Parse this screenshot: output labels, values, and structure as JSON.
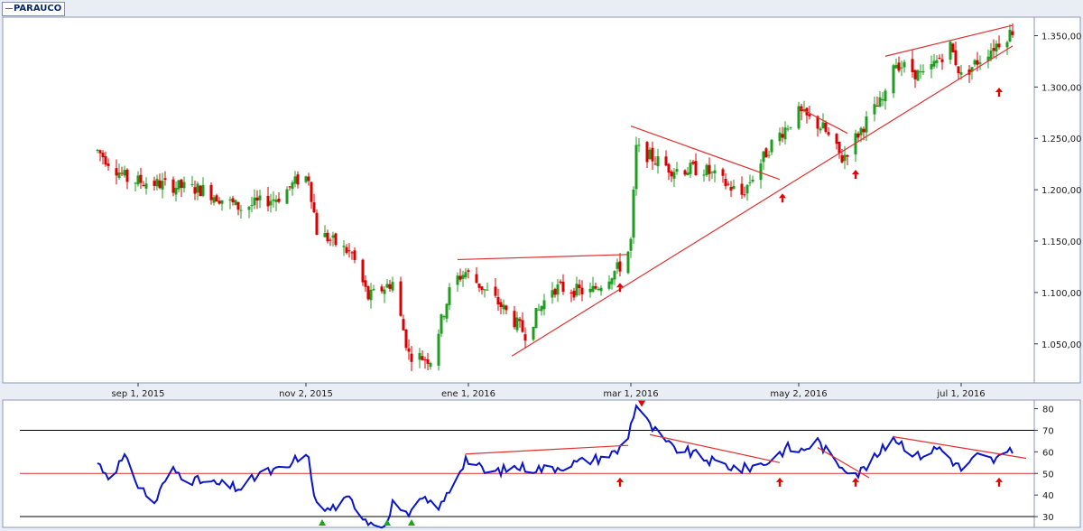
{
  "legend": {
    "label": "PARAUCO"
  },
  "colors": {
    "up": "#1e9e1e",
    "down": "#d80000",
    "trend": "#e03030",
    "indicator": "#0a14c8",
    "reference": "#e03030",
    "level": "#000000",
    "signal_up": "#1ba61b",
    "signal_arrow": "#e80000",
    "background": "#ffffff"
  },
  "chart_data": [
    {
      "type": "candlestick",
      "title": "PARAUCO",
      "x_ticks": [
        "sep 1, 2015",
        "nov 2, 2015",
        "ene 1, 2016",
        "mar 1, 2016",
        "may 2, 2016",
        "jul 1, 2016"
      ],
      "x_tick_dates": [
        "2015-09-01",
        "2015-11-02",
        "2016-01-01",
        "2016-03-01",
        "2016-05-02",
        "2016-07-01"
      ],
      "xlim": [
        "2015-07-13",
        "2016-07-28"
      ],
      "y_ticks": [
        "1.050,00",
        "1.100,00",
        "1.150,00",
        "1.200,00",
        "1.250,00",
        "1.300,00",
        "1.350,00"
      ],
      "y_tick_values": [
        1050,
        1100,
        1150,
        1200,
        1250,
        1300,
        1350
      ],
      "ylim": [
        1012,
        1368
      ],
      "grid": false,
      "legend": "top-left",
      "anchors": [
        [
          "2015-08-17",
          1238
        ],
        [
          "2015-08-28",
          1210
        ],
        [
          "2015-09-10",
          1205
        ],
        [
          "2015-09-25",
          1200
        ],
        [
          "2015-10-09",
          1182
        ],
        [
          "2015-10-23",
          1193
        ],
        [
          "2015-10-31",
          1212
        ],
        [
          "2015-11-03",
          1212
        ],
        [
          "2015-11-06",
          1160
        ],
        [
          "2015-11-19",
          1137
        ],
        [
          "2015-11-25",
          1095
        ],
        [
          "2015-12-04",
          1110
        ],
        [
          "2015-12-10",
          1040
        ],
        [
          "2015-12-18",
          1035
        ],
        [
          "2015-12-26",
          1110
        ],
        [
          "2015-12-31",
          1120
        ],
        [
          "2016-01-12",
          1090
        ],
        [
          "2016-01-22",
          1060
        ],
        [
          "2016-02-01",
          1105
        ],
        [
          "2016-02-15",
          1100
        ],
        [
          "2016-02-28",
          1130
        ],
        [
          "2016-03-01",
          1150
        ],
        [
          "2016-03-03",
          1240
        ],
        [
          "2016-03-16",
          1220
        ],
        [
          "2016-03-28",
          1220
        ],
        [
          "2016-04-11",
          1195
        ],
        [
          "2016-04-22",
          1245
        ],
        [
          "2016-05-02",
          1275
        ],
        [
          "2016-05-11",
          1260
        ],
        [
          "2016-05-18",
          1230
        ],
        [
          "2016-05-29",
          1275
        ],
        [
          "2016-06-03",
          1290
        ],
        [
          "2016-06-06",
          1325
        ],
        [
          "2016-06-17",
          1310
        ],
        [
          "2016-06-27",
          1340
        ],
        [
          "2016-07-01",
          1310
        ],
        [
          "2016-07-11",
          1335
        ],
        [
          "2016-07-20",
          1355
        ]
      ],
      "trendlines": [
        {
          "from": [
            "2015-12-28",
            1132
          ],
          "to": [
            "2016-02-29",
            1137
          ]
        },
        {
          "from": [
            "2016-03-01",
            1262
          ],
          "to": [
            "2016-04-25",
            1210
          ]
        },
        {
          "from": [
            "2016-05-02",
            1280
          ],
          "to": [
            "2016-05-20",
            1255
          ]
        },
        {
          "from": [
            "2016-01-17",
            1038
          ],
          "to": [
            "2016-07-20",
            1340
          ]
        },
        {
          "from": [
            "2016-06-03",
            1330
          ],
          "to": [
            "2016-07-20",
            1360
          ]
        }
      ],
      "signal_arrows": [
        {
          "date": "2016-02-26",
          "value": 1105
        },
        {
          "date": "2016-04-26",
          "value": 1192
        },
        {
          "date": "2016-05-23",
          "value": 1215
        },
        {
          "date": "2016-07-15",
          "value": 1295
        }
      ]
    },
    {
      "type": "line",
      "x_ticks": [
        "sep 1, 2015",
        "nov 2, 2015",
        "ene 1, 2016",
        "mar 1, 2016",
        "may 2, 2016",
        "jul 1, 2016"
      ],
      "y_ticks": [
        "30",
        "40",
        "50",
        "60",
        "70",
        "80"
      ],
      "y_tick_values": [
        30,
        40,
        50,
        60,
        70,
        80
      ],
      "ylim": [
        25,
        84
      ],
      "reference_lines": [
        30,
        50,
        70
      ],
      "anchors": [
        [
          "2015-08-17",
          55
        ],
        [
          "2015-08-21",
          49
        ],
        [
          "2015-08-27",
          57
        ],
        [
          "2015-09-01",
          45
        ],
        [
          "2015-09-07",
          36
        ],
        [
          "2015-09-13",
          52
        ],
        [
          "2015-09-21",
          47
        ],
        [
          "2015-09-30",
          45
        ],
        [
          "2015-10-09",
          43
        ],
        [
          "2015-10-16",
          50
        ],
        [
          "2015-10-26",
          52
        ],
        [
          "2015-10-31",
          59
        ],
        [
          "2015-11-03",
          56
        ],
        [
          "2015-11-06",
          35
        ],
        [
          "2015-11-10",
          33
        ],
        [
          "2015-11-18",
          38
        ],
        [
          "2015-11-25",
          28
        ],
        [
          "2015-12-02",
          27
        ],
        [
          "2015-12-05",
          40
        ],
        [
          "2015-12-10",
          28
        ],
        [
          "2015-12-13",
          38
        ],
        [
          "2015-12-22",
          35
        ],
        [
          "2015-12-31",
          57
        ],
        [
          "2016-01-08",
          50
        ],
        [
          "2016-01-19",
          53
        ],
        [
          "2016-01-30",
          52
        ],
        [
          "2016-02-10",
          55
        ],
        [
          "2016-02-18",
          57
        ],
        [
          "2016-02-25",
          60
        ],
        [
          "2016-02-29",
          68
        ],
        [
          "2016-03-03",
          82
        ],
        [
          "2016-03-08",
          72
        ],
        [
          "2016-03-16",
          62
        ],
        [
          "2016-03-22",
          60
        ],
        [
          "2016-04-01",
          55
        ],
        [
          "2016-04-11",
          52
        ],
        [
          "2016-04-20",
          55
        ],
        [
          "2016-04-28",
          62
        ],
        [
          "2016-05-02",
          60
        ],
        [
          "2016-05-09",
          65
        ],
        [
          "2016-05-16",
          55
        ],
        [
          "2016-05-24",
          50
        ],
        [
          "2016-05-31",
          58
        ],
        [
          "2016-06-06",
          67
        ],
        [
          "2016-06-15",
          58
        ],
        [
          "2016-06-23",
          62
        ],
        [
          "2016-07-01",
          52
        ],
        [
          "2016-07-07",
          58
        ],
        [
          "2016-07-13",
          56
        ],
        [
          "2016-07-20",
          60
        ]
      ],
      "trendlines": [
        {
          "from": [
            "2015-12-31",
            59
          ],
          "to": [
            "2016-02-29",
            63
          ]
        },
        {
          "from": [
            "2016-03-08",
            68
          ],
          "to": [
            "2016-04-25",
            55
          ]
        },
        {
          "from": [
            "2016-05-09",
            62
          ],
          "to": [
            "2016-05-28",
            48
          ]
        },
        {
          "from": [
            "2016-06-06",
            67
          ],
          "to": [
            "2016-07-25",
            57
          ]
        }
      ],
      "signal_arrows_up": [
        "2016-02-26",
        "2016-04-25",
        "2016-05-23",
        "2016-07-15"
      ],
      "signal_markers_down": [
        "2016-03-05"
      ],
      "signal_markers_up": [
        "2015-11-08",
        "2015-12-02",
        "2015-12-11"
      ]
    }
  ]
}
